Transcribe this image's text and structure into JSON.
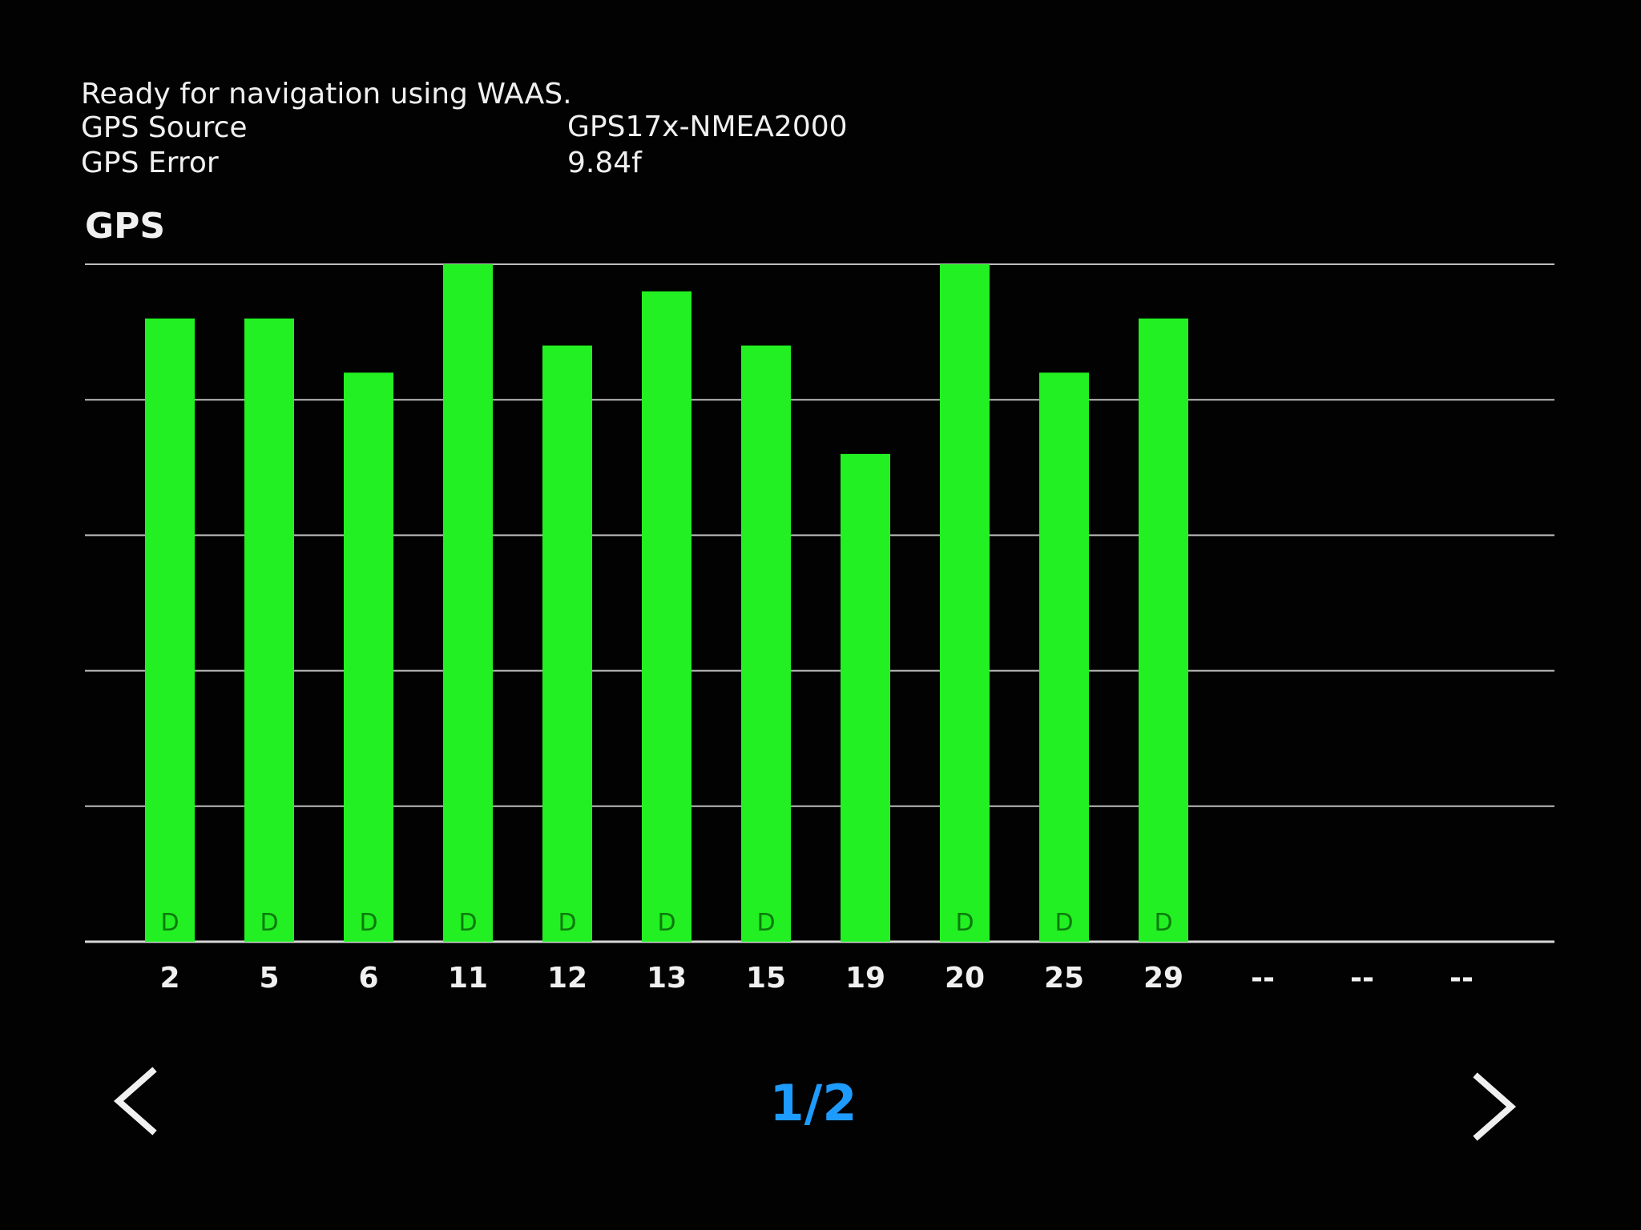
{
  "status": {
    "message": "Ready for navigation using WAAS.",
    "source_label": "GPS Source",
    "source_value": "GPS17x-NMEA2000",
    "error_label": "GPS Error",
    "error_value": "9.84f"
  },
  "section_title": "GPS",
  "chart_data": {
    "type": "bar",
    "title": "GPS",
    "categories": [
      "2",
      "5",
      "6",
      "11",
      "12",
      "13",
      "15",
      "19",
      "20",
      "25",
      "29",
      "--",
      "--",
      "--"
    ],
    "values": [
      0.92,
      0.92,
      0.84,
      1.0,
      0.88,
      0.96,
      0.88,
      0.72,
      1.0,
      0.84,
      0.92,
      null,
      null,
      null
    ],
    "markers": [
      "D",
      "D",
      "D",
      "D",
      "D",
      "D",
      "D",
      "",
      "D",
      "D",
      "D",
      "",
      "",
      ""
    ],
    "ylim": [
      0,
      1
    ],
    "grid": true,
    "bar_color": "#22f022",
    "marker_color": "#0c7a0c"
  },
  "pager": {
    "label": "1/2",
    "prev_icon": "chevron-left-icon",
    "next_icon": "chevron-right-icon",
    "color": "#1e9bff"
  }
}
